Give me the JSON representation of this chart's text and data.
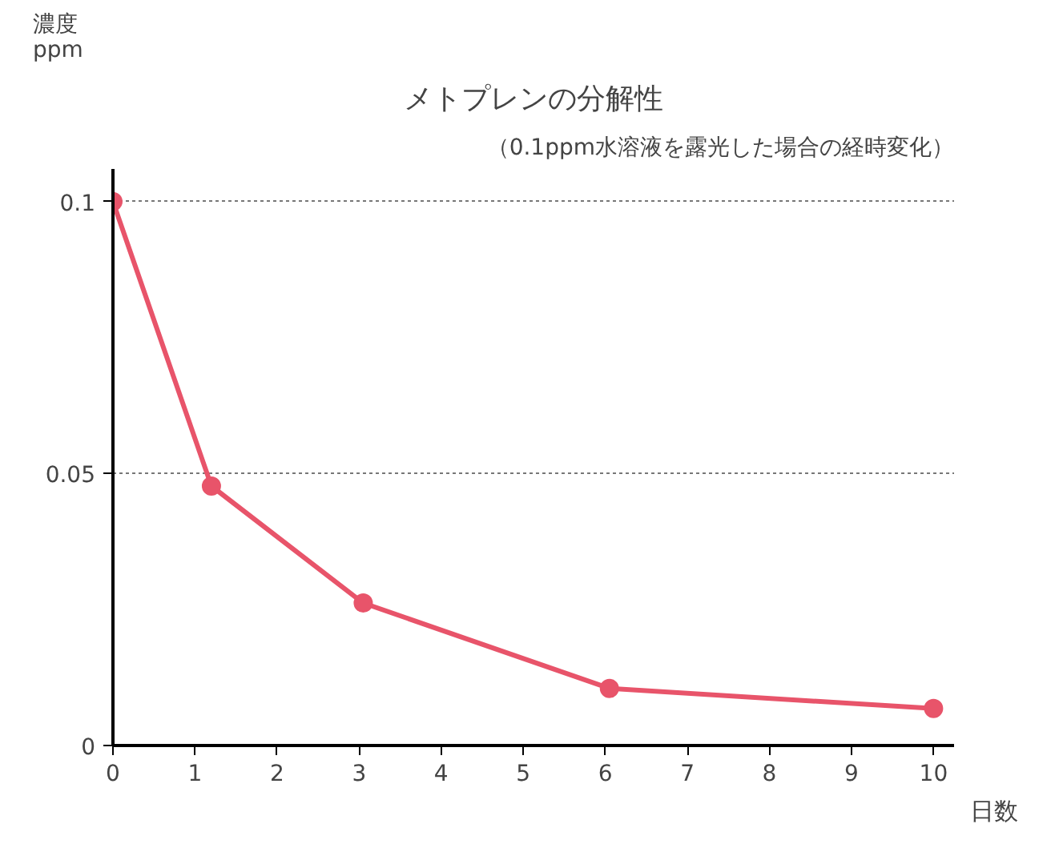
{
  "chart_data": {
    "type": "line",
    "title": "メトプレンの分解性",
    "subtitle": "（0.1ppm水溶液を露光した場合の経時変化）",
    "xlabel": "日数",
    "ylabel": "濃度\nppm",
    "x": [
      0,
      1.2,
      3.05,
      6.05,
      10
    ],
    "series": [
      {
        "color": "#e8546a",
        "values": [
          0.1,
          0.0477,
          0.0262,
          0.0105,
          0.0068
        ]
      }
    ],
    "xlim": [
      0,
      10.25
    ],
    "xticks": [
      0,
      1,
      2,
      3,
      4,
      5,
      6,
      7,
      8,
      9,
      10
    ],
    "ylim": [
      0,
      0.106
    ],
    "yticks": [
      0,
      0.05,
      0.1
    ],
    "grid": "y",
    "marker": "circle",
    "line_style": "solid"
  }
}
